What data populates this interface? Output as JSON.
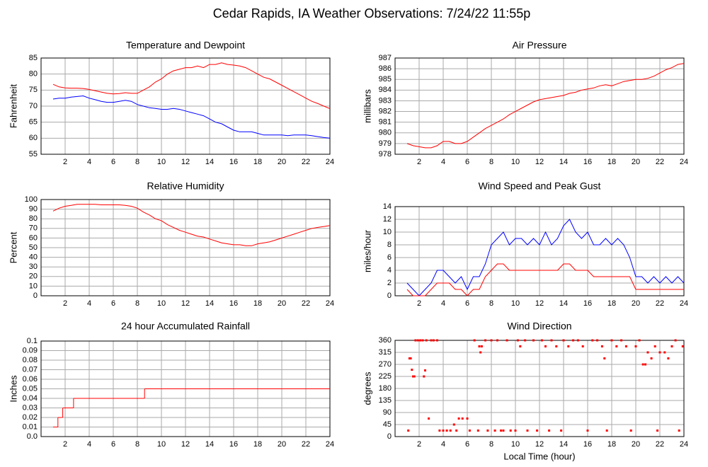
{
  "title": "Cedar Rapids, IA Weather Observations: 7/24/22 11:55p",
  "chart_data": [
    {
      "type": "line",
      "title": "Temperature and Dewpoint",
      "ylabel": "Fahrenheit",
      "xlim": [
        0,
        24
      ],
      "xticks": [
        2,
        4,
        6,
        8,
        10,
        12,
        14,
        16,
        18,
        20,
        22,
        24
      ],
      "ylim": [
        55,
        85
      ],
      "yticks": [
        55,
        60,
        65,
        70,
        75,
        80,
        85
      ],
      "grid": true,
      "x": [
        1,
        1.5,
        2,
        2.5,
        3,
        3.5,
        4,
        4.5,
        5,
        5.5,
        6,
        6.5,
        7,
        7.5,
        8,
        8.5,
        9,
        9.5,
        10,
        10.5,
        11,
        11.5,
        12,
        12.5,
        13,
        13.5,
        14,
        14.5,
        15,
        15.5,
        16,
        16.5,
        17,
        17.5,
        18,
        18.5,
        19,
        19.5,
        20,
        20.5,
        21,
        21.5,
        22,
        22.5,
        23,
        23.5,
        24
      ],
      "series": [
        {
          "color": "#ff0000",
          "values": [
            76.8,
            76,
            75.7,
            75.6,
            75.6,
            75.5,
            75.2,
            74.8,
            74.4,
            74,
            73.8,
            73.9,
            74.2,
            74,
            74,
            75,
            76,
            77.5,
            78.5,
            80,
            81,
            81.5,
            82,
            82,
            82.5,
            82,
            83,
            83,
            83.5,
            83,
            82.8,
            82.5,
            82,
            81,
            80,
            79,
            78.5,
            77.5,
            76.5,
            75.5,
            74.5,
            73.5,
            72.5,
            71.5,
            70.8,
            70,
            69.2
          ]
        },
        {
          "color": "#0000ff",
          "values": [
            72.2,
            72.5,
            72.5,
            72.8,
            73,
            73.2,
            72.5,
            72,
            71.5,
            71.2,
            71.2,
            71.5,
            71.8,
            71.5,
            70.5,
            70,
            69.5,
            69.3,
            69,
            69,
            69.3,
            69,
            68.5,
            68,
            67.5,
            67,
            66,
            65,
            64.5,
            63.5,
            62.5,
            62,
            62,
            62,
            61.5,
            61,
            61,
            61,
            61,
            60.8,
            61,
            61,
            61,
            60.8,
            60.5,
            60.2,
            60
          ]
        }
      ]
    },
    {
      "type": "line",
      "title": "Air Pressure",
      "ylabel": "millibars",
      "xlim": [
        0,
        24
      ],
      "xticks": [
        2,
        4,
        6,
        8,
        10,
        12,
        14,
        16,
        18,
        20,
        22,
        24
      ],
      "ylim": [
        978,
        987
      ],
      "yticks": [
        978,
        979,
        980,
        981,
        982,
        983,
        984,
        985,
        986,
        987
      ],
      "grid": true,
      "x": [
        1,
        1.5,
        2,
        2.5,
        3,
        3.5,
        4,
        4.5,
        5,
        5.5,
        6,
        6.5,
        7,
        7.5,
        8,
        8.5,
        9,
        9.5,
        10,
        10.5,
        11,
        11.5,
        12,
        12.5,
        13,
        13.5,
        14,
        14.5,
        15,
        15.5,
        16,
        16.5,
        17,
        17.5,
        18,
        18.5,
        19,
        19.5,
        20,
        20.5,
        21,
        21.5,
        22,
        22.5,
        23,
        23.5,
        24
      ],
      "series": [
        {
          "color": "#ff0000",
          "values": [
            979,
            978.8,
            978.7,
            978.6,
            978.6,
            978.8,
            979.2,
            979.2,
            979,
            979,
            979.2,
            979.6,
            980,
            980.4,
            980.7,
            981,
            981.3,
            981.7,
            982,
            982.3,
            982.6,
            982.9,
            983.1,
            983.2,
            983.3,
            983.4,
            983.5,
            983.7,
            983.8,
            984,
            984.1,
            984.2,
            984.4,
            984.5,
            984.4,
            984.6,
            984.8,
            984.9,
            985,
            985,
            985.1,
            985.3,
            985.6,
            985.9,
            986.1,
            986.4,
            986.5
          ]
        }
      ]
    },
    {
      "type": "line",
      "title": "Relative Humidity",
      "ylabel": "Percent",
      "xlim": [
        0,
        24
      ],
      "xticks": [
        2,
        4,
        6,
        8,
        10,
        12,
        14,
        16,
        18,
        20,
        22,
        24
      ],
      "ylim": [
        0,
        100
      ],
      "yticks": [
        0,
        10,
        20,
        30,
        40,
        50,
        60,
        70,
        80,
        90,
        100
      ],
      "grid": true,
      "x": [
        1,
        1.5,
        2,
        2.5,
        3,
        3.5,
        4,
        4.5,
        5,
        5.5,
        6,
        6.5,
        7,
        7.5,
        8,
        8.5,
        9,
        9.5,
        10,
        10.5,
        11,
        11.5,
        12,
        12.5,
        13,
        13.5,
        14,
        14.5,
        15,
        15.5,
        16,
        16.5,
        17,
        17.5,
        18,
        18.5,
        19,
        19.5,
        20,
        20.5,
        21,
        21.5,
        22,
        22.5,
        23,
        23.5,
        24
      ],
      "series": [
        {
          "color": "#ff0000",
          "values": [
            88,
            91,
            93,
            94,
            95,
            95,
            95,
            95,
            94.5,
            94.5,
            94.5,
            94.5,
            94,
            93,
            91,
            87,
            84,
            80,
            78,
            74,
            71,
            68,
            66,
            64,
            62,
            61,
            59,
            57,
            55,
            54,
            53,
            53,
            52,
            52,
            54,
            55,
            56,
            58,
            60,
            62,
            64,
            66,
            68,
            70,
            71,
            72,
            73
          ]
        }
      ]
    },
    {
      "type": "line",
      "title": "Wind Speed and Peak Gust",
      "ylabel": "miles/hour",
      "xlim": [
        0,
        24
      ],
      "xticks": [
        2,
        4,
        6,
        8,
        10,
        12,
        14,
        16,
        18,
        20,
        22,
        24
      ],
      "ylim": [
        0,
        14
      ],
      "yticks": [
        0,
        2,
        4,
        6,
        8,
        10,
        12,
        14
      ],
      "grid": true,
      "x": [
        1,
        1.5,
        2,
        2.5,
        3,
        3.5,
        4,
        4.5,
        5,
        5.5,
        6,
        6.5,
        7,
        7.5,
        8,
        8.5,
        9,
        9.5,
        10,
        10.5,
        11,
        11.5,
        12,
        12.5,
        13,
        13.5,
        14,
        14.5,
        15,
        15.5,
        16,
        16.5,
        17,
        17.5,
        18,
        18.5,
        19,
        19.5,
        20,
        20.5,
        21,
        21.5,
        22,
        22.5,
        23,
        23.5,
        24
      ],
      "series": [
        {
          "color": "#0000ff",
          "values": [
            2,
            1,
            0,
            1,
            2,
            4,
            4,
            3,
            2,
            3,
            1,
            3,
            3,
            5,
            8,
            9,
            10,
            8,
            9,
            9,
            8,
            9,
            8,
            10,
            8,
            9,
            11,
            12,
            10,
            9,
            10,
            8,
            8,
            9,
            8,
            9,
            8,
            6,
            3,
            3,
            2,
            3,
            2,
            3,
            2,
            3,
            2
          ]
        },
        {
          "color": "#ff0000",
          "values": [
            1,
            0,
            0,
            0,
            1,
            2,
            2,
            2,
            1,
            1,
            0,
            1,
            1,
            3,
            4,
            5,
            5,
            4,
            4,
            4,
            4,
            4,
            4,
            4,
            4,
            4,
            5,
            5,
            4,
            4,
            4,
            3,
            3,
            3,
            3,
            3,
            3,
            3,
            1,
            1,
            1,
            1,
            1,
            1,
            1,
            1,
            1
          ]
        }
      ]
    },
    {
      "type": "line",
      "step": "post",
      "title": "24 hour Accumulated Rainfall",
      "ylabel": "Inches",
      "xlim": [
        0,
        24
      ],
      "xticks": [
        2,
        4,
        6,
        8,
        10,
        12,
        14,
        16,
        18,
        20,
        22,
        24
      ],
      "ylim": [
        0,
        0.1
      ],
      "yticks": [
        {
          "value": 0,
          "label": "0.0"
        },
        0.01,
        0.02,
        0.03,
        0.04,
        0.05,
        0.06,
        0.07,
        0.08,
        0.09,
        0.1
      ],
      "grid": true,
      "x": [
        1.0,
        1.4,
        1.8,
        2.7,
        8.6,
        24.0
      ],
      "series": [
        {
          "color": "#ff0000",
          "values": [
            0.01,
            0.02,
            0.03,
            0.04,
            0.05,
            0.05
          ]
        }
      ]
    },
    {
      "type": "scatter",
      "title": "Wind Direction",
      "ylabel": "degrees",
      "xlabel": "Local Time (hour)",
      "xlim": [
        0,
        24
      ],
      "xticks": [
        2,
        4,
        6,
        8,
        10,
        12,
        14,
        16,
        18,
        20,
        22,
        24
      ],
      "ylim": [
        0,
        360
      ],
      "yticks": [
        0,
        45,
        90,
        135,
        180,
        225,
        270,
        315,
        360
      ],
      "grid": true,
      "color": "#ff0000",
      "x": [
        1.1,
        1.2,
        1.3,
        1.4,
        1.5,
        1.6,
        1.7,
        1.9,
        2.1,
        2.3,
        2.4,
        2.5,
        2.6,
        2.8,
        3.0,
        3.2,
        3.5,
        3.7,
        4.0,
        4.3,
        4.6,
        4.9,
        5.1,
        5.3,
        5.6,
        6.0,
        6.2,
        6.6,
        6.9,
        7.0,
        7.1,
        7.2,
        7.5,
        7.7,
        8.0,
        8.3,
        8.5,
        8.8,
        9.0,
        9.3,
        9.6,
        10.0,
        10.2,
        10.4,
        10.8,
        11.0,
        11.5,
        11.8,
        12.2,
        12.5,
        12.8,
        13.0,
        13.4,
        13.8,
        14.0,
        14.4,
        14.8,
        15.2,
        15.6,
        16.0,
        16.4,
        16.8,
        17.2,
        17.4,
        17.6,
        18.0,
        18.4,
        18.8,
        19.2,
        19.6,
        20.0,
        20.3,
        20.6,
        20.8,
        21.0,
        21.3,
        21.6,
        21.8,
        22.0,
        22.4,
        22.7,
        23.0,
        23.3,
        23.6,
        23.9
      ],
      "values": [
        22.5,
        292.5,
        292.5,
        250,
        225,
        225,
        360,
        360,
        360,
        360,
        225,
        247.5,
        360,
        67.5,
        360,
        360,
        360,
        22.5,
        22.5,
        22.5,
        22.5,
        45,
        22.5,
        67.5,
        67.5,
        67.5,
        22.5,
        360,
        22.5,
        337.5,
        315,
        337.5,
        360,
        22.5,
        360,
        22.5,
        360,
        22.5,
        22.5,
        360,
        22.5,
        22.5,
        360,
        337.5,
        360,
        22.5,
        360,
        22.5,
        360,
        337.5,
        22.5,
        360,
        337.5,
        22.5,
        360,
        337.5,
        360,
        360,
        337.5,
        22.5,
        360,
        360,
        337.5,
        292.5,
        22.5,
        360,
        337.5,
        360,
        337.5,
        22.5,
        337.5,
        360,
        270,
        270,
        315,
        292.5,
        337.5,
        22.5,
        315,
        315,
        292.5,
        337.5,
        360,
        22.5,
        337.5
      ]
    }
  ]
}
